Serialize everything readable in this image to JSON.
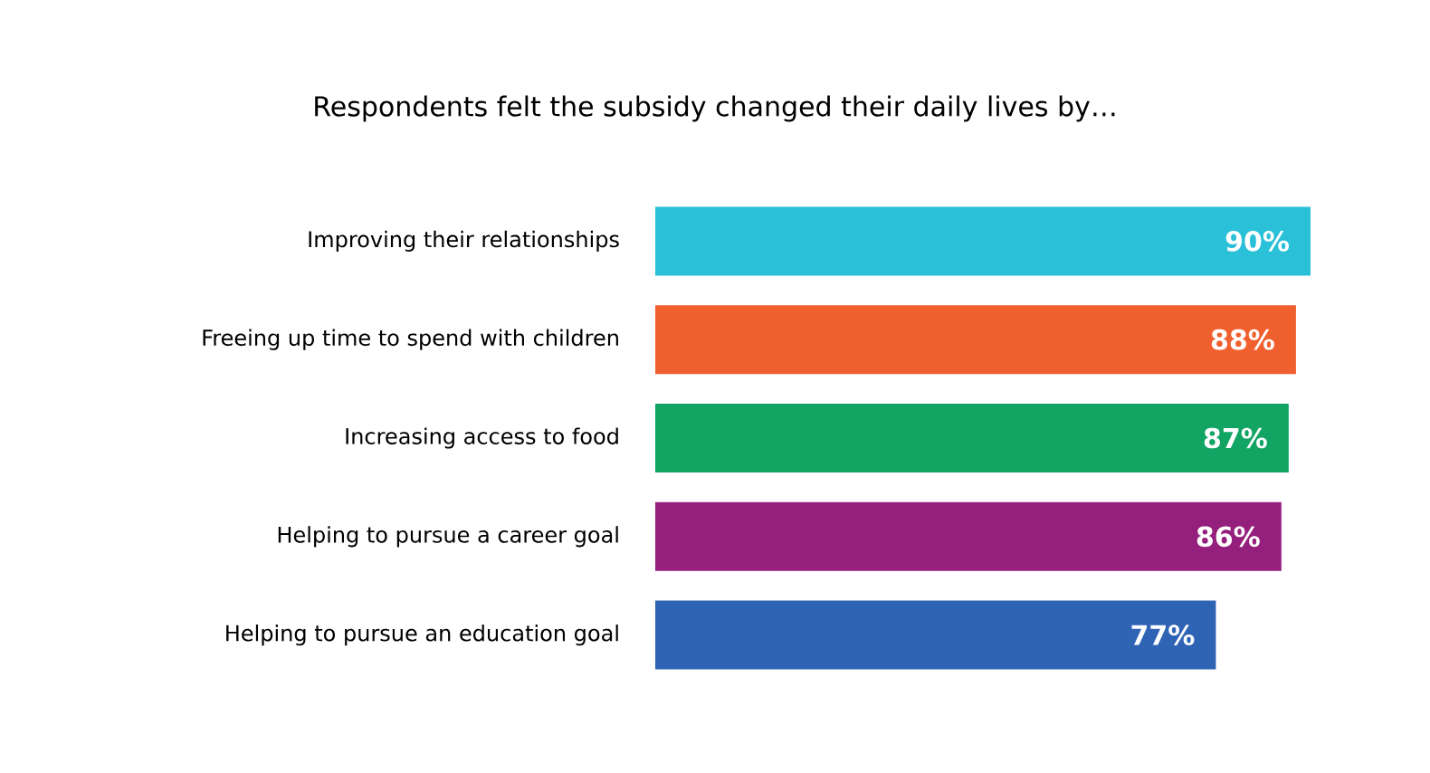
{
  "chart_data": {
    "type": "bar",
    "orientation": "horizontal",
    "title": "Respondents felt the subsidy changed their daily lives by…",
    "categories": [
      "Improving their relationships",
      "Freeing up time to spend with children",
      "Increasing access to food",
      "Helping to pursue a career goal",
      "Helping to pursue an education goal"
    ],
    "values": [
      90,
      88,
      87,
      86,
      77
    ],
    "colors": [
      "#29c0d8",
      "#f05f2e",
      "#12a463",
      "#951f7c",
      "#2f63b4"
    ],
    "value_labels": [
      "90%",
      "88%",
      "87%",
      "86%",
      "77%"
    ]
  }
}
